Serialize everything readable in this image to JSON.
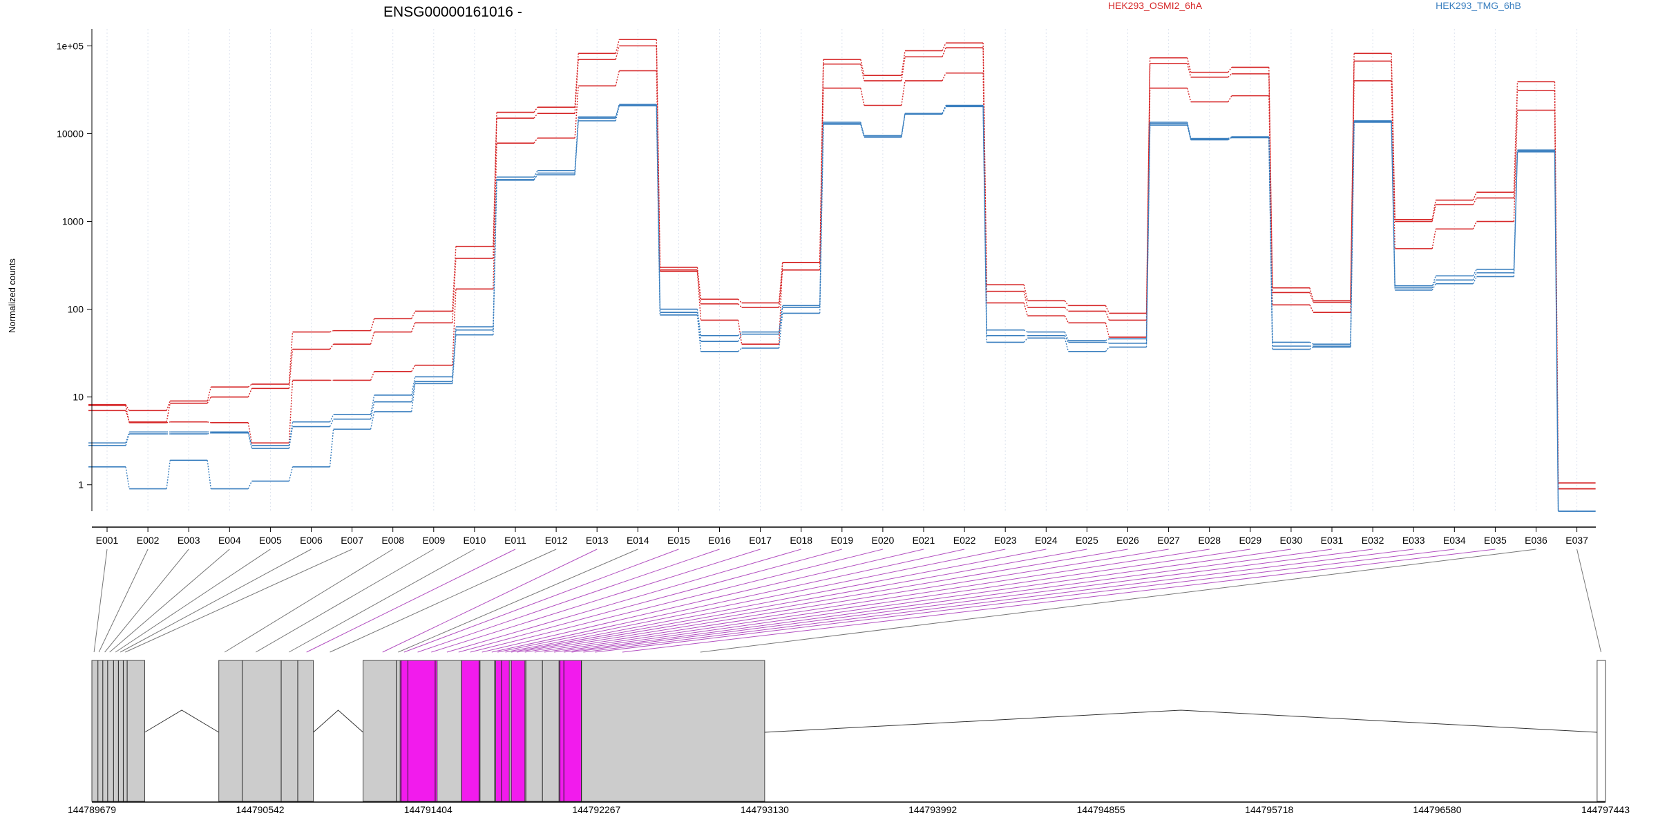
{
  "chart_data": {
    "type": "line",
    "title": "ENSG00000161016 -",
    "ylabel": "Normalized counts",
    "xlabel": "",
    "y_scale": "log",
    "ylim": [
      0.5,
      150000
    ],
    "y_ticks": [
      {
        "value": 1,
        "label": "1"
      },
      {
        "value": 10,
        "label": "10"
      },
      {
        "value": 100,
        "label": "100"
      },
      {
        "value": 1000,
        "label": "1000"
      },
      {
        "value": 10000,
        "label": "10000"
      },
      {
        "value": 100000,
        "label": "1e+05"
      }
    ],
    "grid": "vertical dotted",
    "legend_position": "top",
    "legend": [
      {
        "label": "HEK293_OSMI2_6hA",
        "color": "#d62728"
      },
      {
        "label": "HEK293_TMG_6hB",
        "color": "#3a7fbf"
      }
    ],
    "categories": [
      "E001",
      "E002",
      "E003",
      "E004",
      "E005",
      "E006",
      "E007",
      "E008",
      "E009",
      "E010",
      "E011",
      "E012",
      "E013",
      "E014",
      "E015",
      "E016",
      "E017",
      "E018",
      "E019",
      "E020",
      "E021",
      "E022",
      "E023",
      "E024",
      "E025",
      "E026",
      "E027",
      "E028",
      "E029",
      "E030",
      "E031",
      "E032",
      "E033",
      "E034",
      "E035",
      "E036",
      "E037"
    ],
    "highlighted_exons": [
      "E011",
      "E013",
      "E015",
      "E016",
      "E017",
      "E018",
      "E019",
      "E020",
      "E021",
      "E022",
      "E023",
      "E024",
      "E025",
      "E026",
      "E027",
      "E028",
      "E029",
      "E030",
      "E031",
      "E032",
      "E033",
      "E034",
      "E035"
    ],
    "series": [
      {
        "group": "HEK293_OSMI2_6hA",
        "color": "#d62728",
        "values": [
          8.2,
          7,
          9,
          13,
          14,
          55,
          57,
          78,
          95,
          520,
          17500,
          20000,
          82000,
          118000,
          300,
          130,
          118,
          340,
          70000,
          46000,
          88000,
          108000,
          190,
          125,
          110,
          90,
          73000,
          50000,
          57000,
          175,
          125,
          82000,
          1050,
          1750,
          2150,
          39000,
          1.05
        ]
      },
      {
        "group": "HEK293_OSMI2_6hA",
        "color": "#d62728",
        "values": [
          7,
          5.2,
          8.5,
          10,
          12.5,
          35,
          40,
          55,
          70,
          380,
          15000,
          17000,
          70000,
          100000,
          280,
          115,
          105,
          280,
          62000,
          40000,
          75000,
          95000,
          160,
          105,
          95,
          75,
          63000,
          44000,
          48000,
          155,
          120,
          67000,
          1000,
          1550,
          1850,
          31000,
          0.9
        ]
      },
      {
        "group": "HEK293_OSMI2_6hA",
        "color": "#d62728",
        "values": [
          8,
          5.1,
          5.2,
          5.1,
          3,
          15.5,
          15.5,
          19.5,
          23,
          170,
          7800,
          8900,
          35000,
          52000,
          270,
          75,
          40,
          340,
          33000,
          21000,
          40000,
          49000,
          118,
          84,
          70,
          48,
          33000,
          23000,
          27000,
          112,
          92,
          40000,
          490,
          820,
          1000,
          18500,
          0.9
        ]
      },
      {
        "group": "HEK293_TMG_6hB",
        "color": "#3a7fbf",
        "values": [
          3,
          4,
          4,
          4,
          2.8,
          5.2,
          6.3,
          10.5,
          17,
          63,
          3200,
          3800,
          15500,
          21500,
          100,
          50,
          55,
          110,
          13500,
          9500,
          17000,
          21000,
          58,
          55,
          44,
          46,
          13500,
          8800,
          9200,
          42,
          40,
          14000,
          185,
          240,
          285,
          6500,
          0.5
        ]
      },
      {
        "group": "HEK293_TMG_6hB",
        "color": "#3a7fbf",
        "values": [
          2.8,
          3.8,
          3.8,
          3.9,
          2.6,
          4.6,
          5.6,
          8.8,
          15,
          58,
          2950,
          3550,
          15000,
          21000,
          92,
          43,
          52,
          105,
          13000,
          9200,
          16800,
          20800,
          50,
          50,
          42,
          41,
          13000,
          8600,
          9000,
          38,
          38,
          13500,
          175,
          215,
          260,
          6300,
          0.5
        ]
      },
      {
        "group": "HEK293_TMG_6hB",
        "color": "#3a7fbf",
        "values": [
          1.6,
          0.9,
          1.9,
          0.9,
          1.1,
          1.6,
          4.3,
          6.8,
          14.2,
          51,
          3000,
          3400,
          14000,
          20800,
          86,
          33,
          36,
          90,
          12800,
          9100,
          16700,
          20300,
          42,
          47,
          33,
          37,
          12500,
          8500,
          9000,
          35,
          37,
          13800,
          165,
          195,
          235,
          6200,
          0.5
        ]
      }
    ],
    "gene_track": {
      "coordinate_ticks": [
        "144789679",
        "144790542",
        "144791404",
        "144792267",
        "144793130",
        "144793992",
        "144794855",
        "144795718",
        "144796580",
        "144797443"
      ],
      "coordinate_range": [
        144789679,
        144797443
      ]
    }
  }
}
